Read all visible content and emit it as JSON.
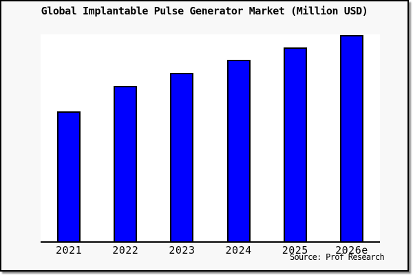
{
  "title": "Global Implantable Pulse Generator Market (Million USD)",
  "source": "Source: Prof Research",
  "colors": {
    "bar_fill": "#0000ff",
    "bar_border": "#000000",
    "canvas_background": "#f8f8f8",
    "plot_background": "#ffffff",
    "axis_line": "#000000",
    "frame_border": "#000000",
    "text": "#000000"
  },
  "chart_data": {
    "type": "bar",
    "title": "Global Implantable Pulse Generator Market (Million USD)",
    "categories": [
      "2021",
      "2022",
      "2023",
      "2024",
      "2025",
      "2026e"
    ],
    "values": [
      62.8,
      75.1,
      81.4,
      87.7,
      93.7,
      99.7
    ],
    "xlabel": "",
    "ylabel": "",
    "ylim": [
      0,
      100
    ],
    "y_axis_visible": false,
    "grid": false,
    "legend": false,
    "note": "No numeric y-axis shown in chart; values are bar heights as percent of plot height (2026e is estimate year)."
  }
}
